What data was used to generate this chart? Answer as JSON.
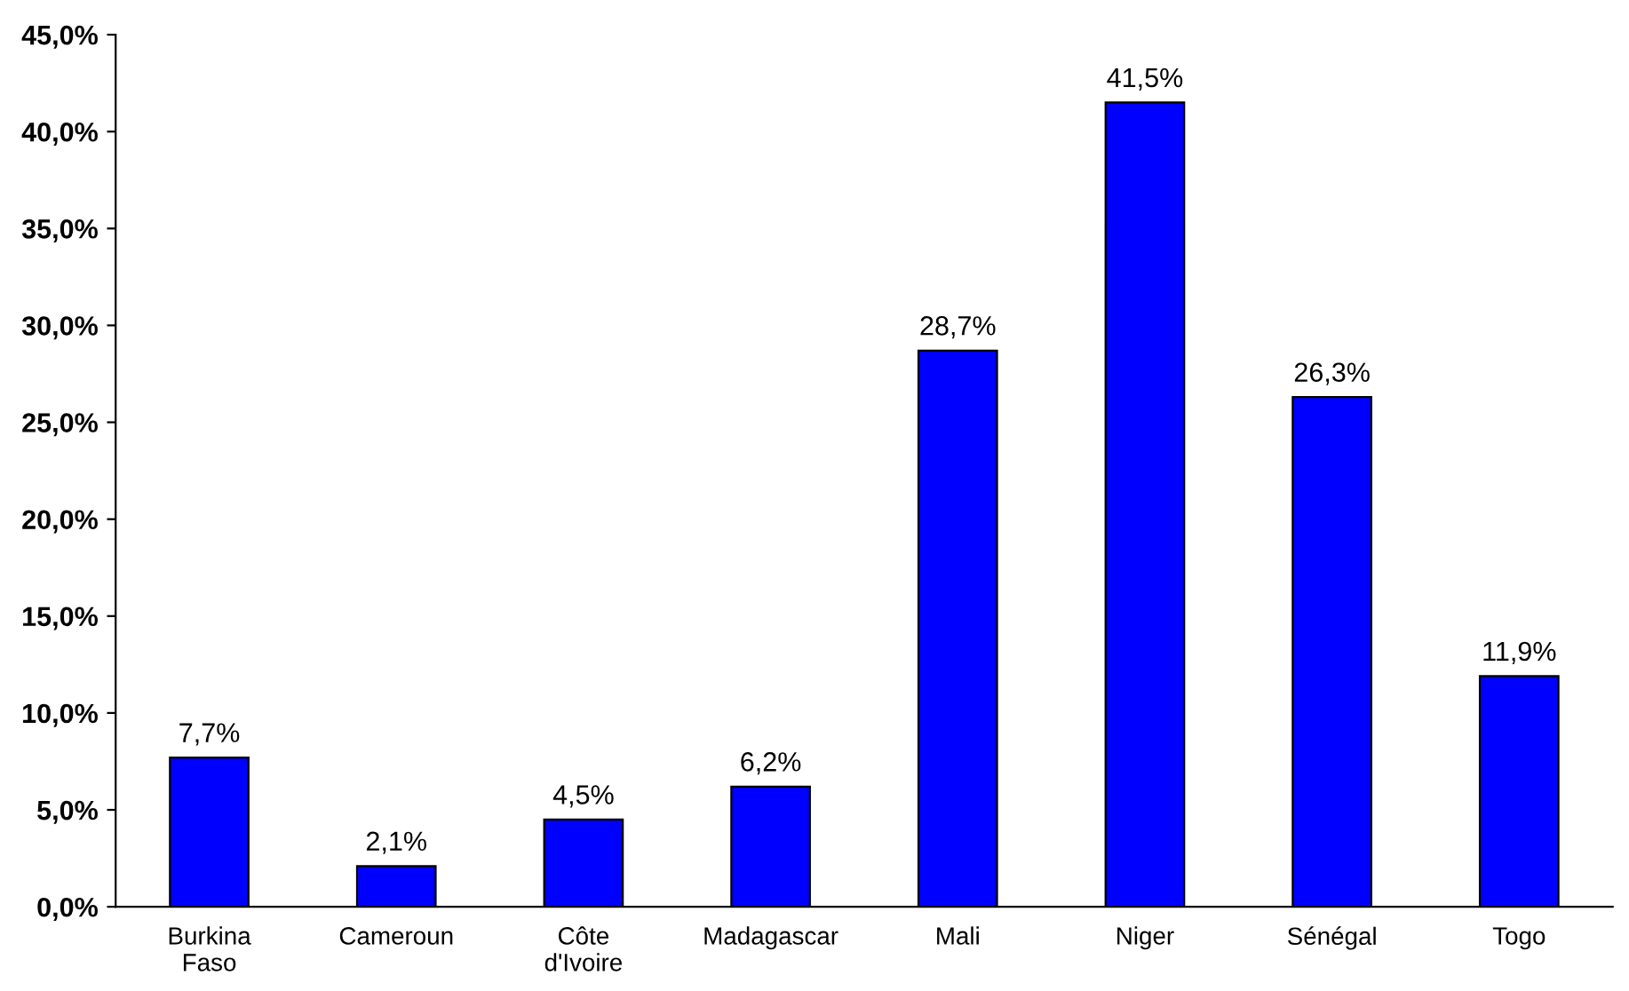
{
  "chart_data": {
    "type": "bar",
    "categories": [
      "Burkina Faso",
      "Cameroun",
      "Côte d'Ivoire",
      "Madagascar",
      "Mali",
      "Niger",
      "Sénégal",
      "Togo"
    ],
    "values": [
      7.7,
      2.1,
      4.5,
      6.2,
      28.7,
      41.5,
      26.3,
      11.9
    ],
    "value_labels": [
      "7,7%",
      "2,1%",
      "4,5%",
      "6,2%",
      "28,7%",
      "41,5%",
      "26,3%",
      "11,9%"
    ],
    "color": "#0000ff",
    "ylim": [
      0,
      45
    ],
    "yticks": [
      {
        "value": 0,
        "label": "0,0%"
      },
      {
        "value": 5,
        "label": "5,0%"
      },
      {
        "value": 10,
        "label": "10,0%"
      },
      {
        "value": 15,
        "label": "15,0%"
      },
      {
        "value": 20,
        "label": "20,0%"
      },
      {
        "value": 25,
        "label": "25,0%"
      },
      {
        "value": 30,
        "label": "30,0%"
      },
      {
        "value": 35,
        "label": "35,0%"
      },
      {
        "value": 40,
        "label": "40,0%"
      },
      {
        "value": 45,
        "label": "45,0%"
      }
    ],
    "grid": false,
    "legend": false
  }
}
